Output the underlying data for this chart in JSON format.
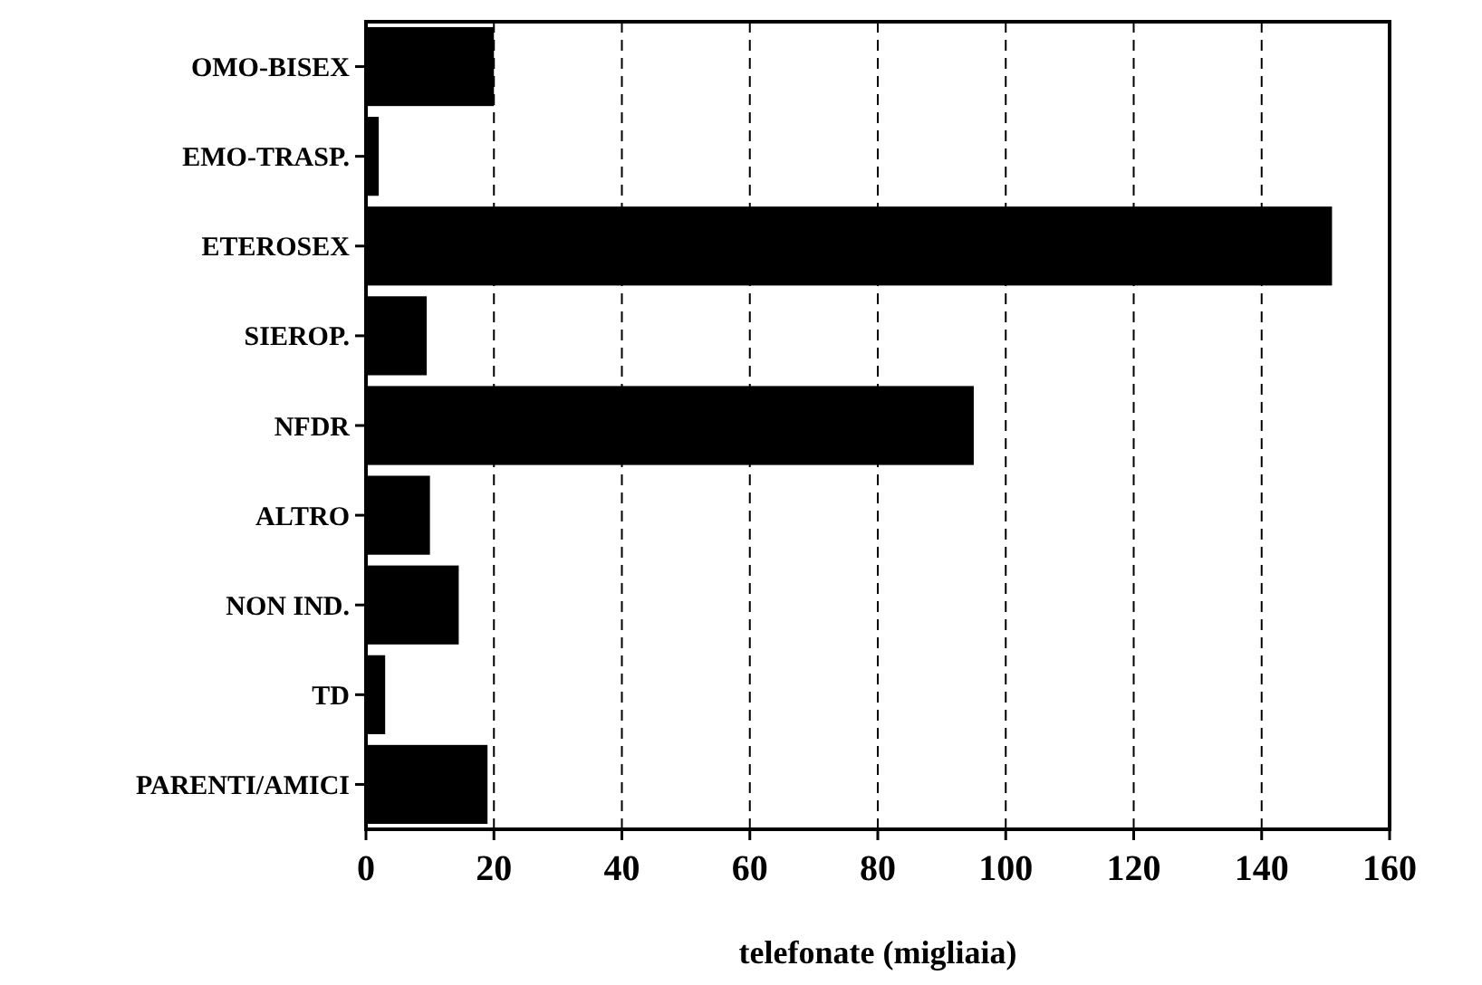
{
  "chart_data": {
    "type": "bar",
    "orientation": "horizontal",
    "xlabel": "telefonate (migliaia)",
    "categories": [
      "OMO-BISEX",
      "EMO-TRASP.",
      "ETEROSEX",
      "SIEROP.",
      "NFDR",
      "ALTRO",
      "NON IND.",
      "TD",
      "PARENTI/AMICI"
    ],
    "values": [
      20,
      2,
      151,
      9.5,
      95,
      10,
      14.5,
      3,
      19
    ],
    "color": "#000000",
    "xlim": [
      0,
      160
    ],
    "xticks": [
      0,
      20,
      40,
      60,
      80,
      100,
      120,
      140,
      160
    ],
    "grid": "x",
    "line_style": "dashed"
  }
}
